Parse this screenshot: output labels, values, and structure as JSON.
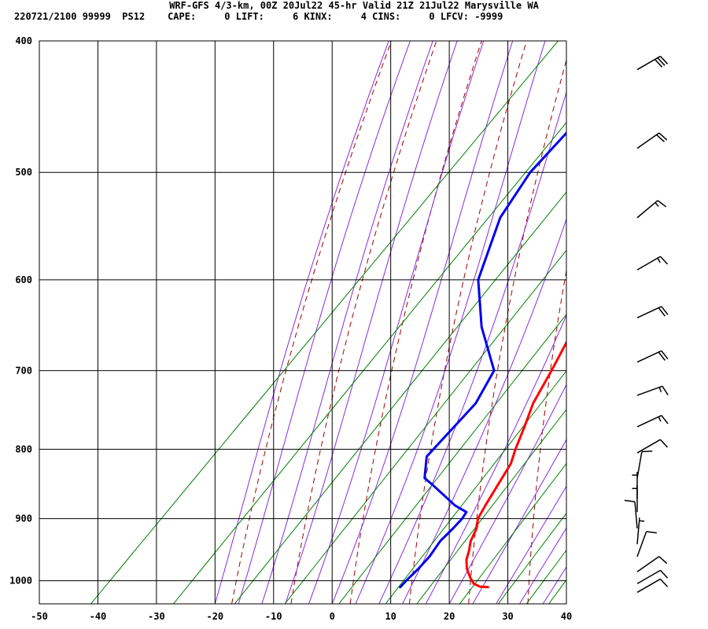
{
  "header": {
    "line1": "WRF-GFS 4/3-km, 00Z 20Jul22 45-hr Valid 21Z 21Jul22 Marysville WA",
    "line2": "220721/2100 99999  PS12    CAPE:     0 LIFT:     6 KINX:     4 CINS:     0 LFCV: -9999"
  },
  "chart_data": {
    "type": "line",
    "diagram": "skew-T log-P",
    "x_unit": "deg C (skewed)",
    "y_unit": "hPa",
    "y_scale": "log",
    "y_reversed": true,
    "xlim": [
      -50,
      40
    ],
    "ylim": [
      1040,
      400
    ],
    "x_ticks": [
      -50,
      -40,
      -30,
      -20,
      -10,
      0,
      10,
      20,
      30,
      40
    ],
    "y_ticks": [
      400,
      500,
      600,
      700,
      800,
      900,
      1000
    ],
    "grid": true,
    "colors": {
      "temperature": "#ff0000",
      "dewpoint": "#0000ee",
      "dry_adiabats": "#a00000",
      "moist_adiabats": "#8a2be2",
      "mixing_ratio": "#008000",
      "grid": "#000000",
      "barbs": "#000000"
    },
    "series": [
      {
        "key": "temperature",
        "p": [
          1011,
          1010,
          1005,
          995,
          980,
          965,
          950,
          935,
          915,
          900,
          880,
          850,
          820,
          800,
          770,
          740,
          700,
          660,
          620,
          580,
          540,
          500,
          460,
          420
        ],
        "t": [
          24.0,
          22.5,
          21.0,
          19.5,
          17.5,
          16.0,
          15.0,
          13.8,
          12.8,
          11.5,
          10.7,
          9.6,
          8.5,
          7.0,
          5.0,
          2.8,
          0.8,
          -1.5,
          -4.0,
          -6.6,
          -8.8,
          -12.0,
          -15.8,
          -19.8
        ]
      },
      {
        "key": "dewpoint",
        "p": [
          1011,
          1000,
          980,
          960,
          935,
          915,
          900,
          890,
          880,
          850,
          840,
          810,
          780,
          760,
          740,
          700,
          650,
          600,
          540,
          500,
          460,
          420
        ],
        "t": [
          9.0,
          9.0,
          9.2,
          9.2,
          8.6,
          8.8,
          8.8,
          8.5,
          5.5,
          -1.5,
          -4.0,
          -7.0,
          -7.0,
          -7.0,
          -7.0,
          -9.0,
          -18.0,
          -26.0,
          -32.0,
          -34.0,
          -34.0,
          -36.0
        ]
      }
    ],
    "wind_barbs": [
      {
        "p": 420,
        "dir": 240,
        "spd": 30
      },
      {
        "p": 480,
        "dir": 235,
        "spd": 20
      },
      {
        "p": 540,
        "dir": 230,
        "spd": 15
      },
      {
        "p": 590,
        "dir": 240,
        "spd": 15
      },
      {
        "p": 640,
        "dir": 245,
        "spd": 20
      },
      {
        "p": 690,
        "dir": 245,
        "spd": 20
      },
      {
        "p": 730,
        "dir": 250,
        "spd": 15
      },
      {
        "p": 770,
        "dir": 245,
        "spd": 15
      },
      {
        "p": 805,
        "dir": 240,
        "spd": 10
      },
      {
        "p": 840,
        "dir": 190,
        "spd": 10
      },
      {
        "p": 870,
        "dir": 180,
        "spd": 5
      },
      {
        "p": 890,
        "dir": 180,
        "spd": 5
      },
      {
        "p": 915,
        "dir": 175,
        "spd": 10
      },
      {
        "p": 940,
        "dir": 185,
        "spd": 5
      },
      {
        "p": 960,
        "dir": 200,
        "spd": 10
      },
      {
        "p": 985,
        "dir": 235,
        "spd": 10
      },
      {
        "p": 1005,
        "dir": 240,
        "spd": 10
      },
      {
        "p": 1020,
        "dir": 240,
        "spd": 10
      }
    ]
  }
}
